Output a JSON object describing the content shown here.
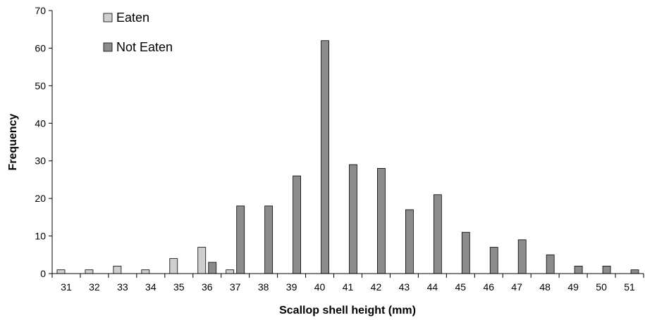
{
  "chart_data": {
    "type": "bar",
    "xlabel": "Scallop shell height (mm)",
    "ylabel": "Frequency",
    "ylim": [
      0,
      70
    ],
    "yticks": [
      0,
      10,
      20,
      30,
      40,
      50,
      60,
      70
    ],
    "grid": false,
    "legend_position": "top-left",
    "categories": [
      "31",
      "32",
      "33",
      "34",
      "35",
      "36",
      "37",
      "38",
      "39",
      "40",
      "41",
      "42",
      "43",
      "44",
      "45",
      "46",
      "47",
      "48",
      "49",
      "50",
      "51"
    ],
    "series": [
      {
        "name": "Eaten",
        "color": "#cfcfcf",
        "values": [
          1,
          1,
          2,
          1,
          4,
          7,
          1,
          0,
          0,
          0,
          0,
          0,
          0,
          0,
          0,
          0,
          0,
          0,
          0,
          0,
          0
        ]
      },
      {
        "name": "Not Eaten",
        "color": "#8c8c8c",
        "values": [
          0,
          0,
          0,
          0,
          0,
          3,
          18,
          18,
          26,
          62,
          29,
          28,
          17,
          21,
          11,
          7,
          9,
          5,
          2,
          2,
          1
        ]
      }
    ]
  }
}
